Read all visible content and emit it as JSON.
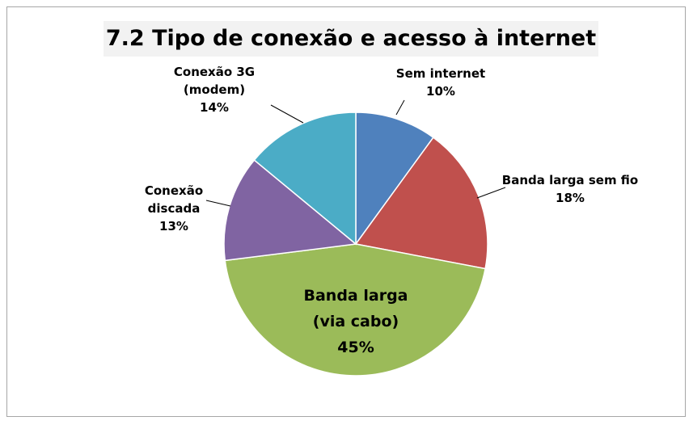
{
  "chart_data": {
    "type": "pie",
    "title": "7.2 Tipo de conexão e acesso à internet",
    "categories": [
      "Sem internet",
      "Banda larga sem fio",
      "Banda larga (via cabo)",
      "Conexão discada",
      "Conexão 3G (modem)"
    ],
    "values": [
      10,
      18,
      45,
      13,
      14
    ],
    "value_labels": [
      "10%",
      "18%",
      "45%",
      "13%",
      "14%"
    ],
    "colors": [
      "#4f81bd",
      "#c0504d",
      "#9bbb59",
      "#8064a2",
      "#4bacc6"
    ]
  }
}
